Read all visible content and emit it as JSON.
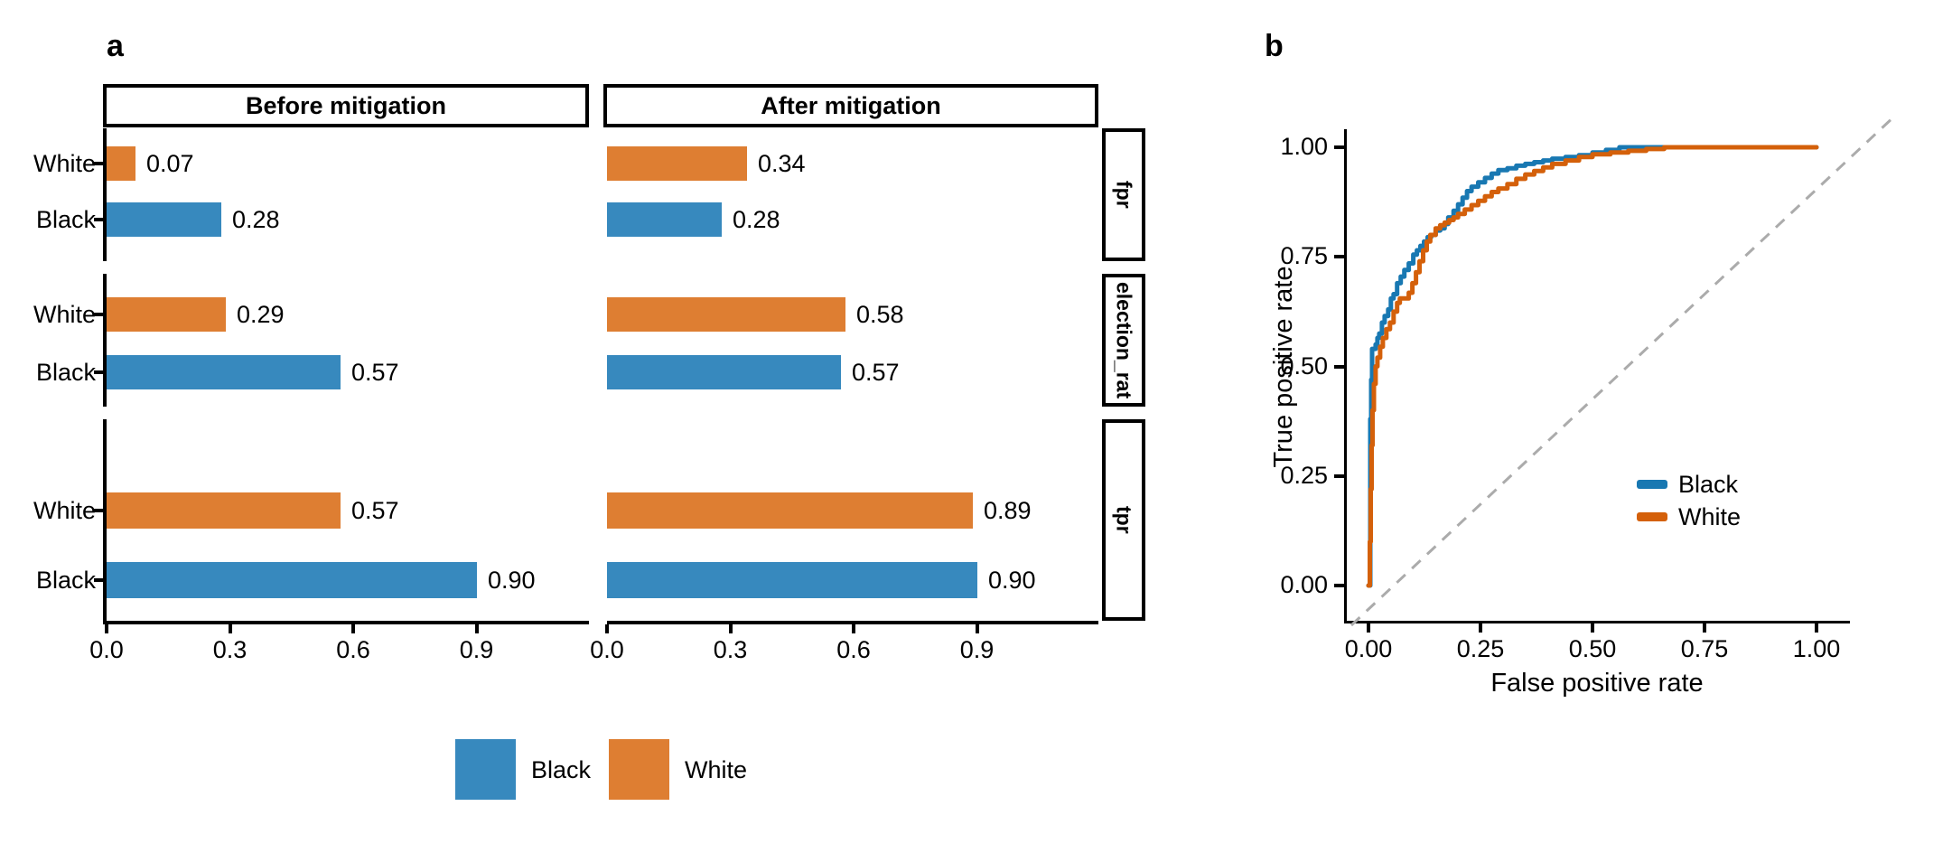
{
  "chart_data": [
    {
      "type": "bar",
      "panel_label": "a",
      "orientation": "horizontal",
      "facet_columns": [
        "Before mitigation",
        "After mitigation"
      ],
      "facet_rows": [
        "fpr",
        "election_rat",
        "tpr"
      ],
      "categories": [
        "White",
        "Black"
      ],
      "x_ticks": [
        "0.0",
        "0.3",
        "0.6",
        "0.9"
      ],
      "x_tick_values": [
        0,
        0.3,
        0.6,
        0.9
      ],
      "xlim": [
        0,
        1.17
      ],
      "grid": false,
      "bar_colors": {
        "Black": "#3789BE",
        "White": "#DE7E32"
      },
      "legend": [
        {
          "label": "Black",
          "color": "#3789BE"
        },
        {
          "label": "White",
          "color": "#DE7E32"
        }
      ],
      "facets": [
        {
          "strip": "fpr",
          "bars": [
            {
              "group": "White",
              "before": 0.07,
              "after": 0.34
            },
            {
              "group": "Black",
              "before": 0.28,
              "after": 0.28
            }
          ]
        },
        {
          "strip": "election_rat",
          "bars": [
            {
              "group": "White",
              "before": 0.29,
              "after": 0.58
            },
            {
              "group": "Black",
              "before": 0.57,
              "after": 0.57
            }
          ]
        },
        {
          "strip": "tpr",
          "bars": [
            {
              "group": "White",
              "before": 0.57,
              "after": 0.89
            },
            {
              "group": "Black",
              "before": 0.9,
              "after": 0.9
            }
          ]
        }
      ]
    },
    {
      "type": "line",
      "panel_label": "b",
      "xlabel": "False positive rate",
      "ylabel": "True positive rate",
      "x_ticks": [
        "0.00",
        "0.25",
        "0.50",
        "0.75",
        "1.00"
      ],
      "y_ticks": [
        "0.00",
        "0.25",
        "0.50",
        "0.75",
        "1.00"
      ],
      "x_tick_values": [
        0,
        0.25,
        0.5,
        0.75,
        1
      ],
      "y_tick_values": [
        0,
        0.25,
        0.5,
        0.75,
        1
      ],
      "xlim": [
        0,
        1.07
      ],
      "ylim": [
        0,
        1.07
      ],
      "grid": false,
      "legend_position": "inside-right",
      "reference_line": {
        "style": "dashed",
        "color": "#ABABAB",
        "from": [
          0,
          0
        ],
        "to": [
          1,
          1
        ]
      },
      "legend": [
        {
          "label": "Black",
          "color": "#1878B2"
        },
        {
          "label": "White",
          "color": "#D4600A"
        }
      ],
      "series": [
        {
          "name": "Black",
          "color": "#1878B2",
          "step": true,
          "points": [
            [
              0,
              0
            ],
            [
              0.004,
              0.38
            ],
            [
              0.006,
              0.47
            ],
            [
              0.008,
              0.54
            ],
            [
              0.016,
              0.55
            ],
            [
              0.02,
              0.565
            ],
            [
              0.024,
              0.575
            ],
            [
              0.03,
              0.6
            ],
            [
              0.036,
              0.615
            ],
            [
              0.044,
              0.63
            ],
            [
              0.05,
              0.655
            ],
            [
              0.056,
              0.665
            ],
            [
              0.064,
              0.69
            ],
            [
              0.072,
              0.705
            ],
            [
              0.08,
              0.72
            ],
            [
              0.09,
              0.735
            ],
            [
              0.1,
              0.755
            ],
            [
              0.108,
              0.765
            ],
            [
              0.116,
              0.775
            ],
            [
              0.124,
              0.785
            ],
            [
              0.132,
              0.795
            ],
            [
              0.14,
              0.8
            ],
            [
              0.15,
              0.81
            ],
            [
              0.16,
              0.815
            ],
            [
              0.17,
              0.825
            ],
            [
              0.178,
              0.84
            ],
            [
              0.19,
              0.855
            ],
            [
              0.2,
              0.87
            ],
            [
              0.21,
              0.885
            ],
            [
              0.22,
              0.9
            ],
            [
              0.23,
              0.91
            ],
            [
              0.245,
              0.92
            ],
            [
              0.26,
              0.93
            ],
            [
              0.275,
              0.94
            ],
            [
              0.29,
              0.948
            ],
            [
              0.31,
              0.952
            ],
            [
              0.33,
              0.958
            ],
            [
              0.35,
              0.962
            ],
            [
              0.37,
              0.966
            ],
            [
              0.39,
              0.97
            ],
            [
              0.41,
              0.974
            ],
            [
              0.44,
              0.978
            ],
            [
              0.47,
              0.982
            ],
            [
              0.5,
              0.988
            ],
            [
              0.53,
              0.994
            ],
            [
              0.56,
              1.0
            ],
            [
              1.0,
              1.0
            ]
          ]
        },
        {
          "name": "White",
          "color": "#D4600A",
          "step": true,
          "points": [
            [
              0,
              0
            ],
            [
              0.003,
              0.1
            ],
            [
              0.005,
              0.22
            ],
            [
              0.007,
              0.32
            ],
            [
              0.009,
              0.4
            ],
            [
              0.012,
              0.46
            ],
            [
              0.016,
              0.5
            ],
            [
              0.02,
              0.52
            ],
            [
              0.026,
              0.545
            ],
            [
              0.032,
              0.565
            ],
            [
              0.04,
              0.585
            ],
            [
              0.048,
              0.6
            ],
            [
              0.056,
              0.625
            ],
            [
              0.064,
              0.645
            ],
            [
              0.07,
              0.655
            ],
            [
              0.082,
              0.655
            ],
            [
              0.09,
              0.668
            ],
            [
              0.098,
              0.69
            ],
            [
              0.106,
              0.715
            ],
            [
              0.114,
              0.74
            ],
            [
              0.122,
              0.765
            ],
            [
              0.13,
              0.785
            ],
            [
              0.138,
              0.8
            ],
            [
              0.15,
              0.815
            ],
            [
              0.16,
              0.822
            ],
            [
              0.17,
              0.828
            ],
            [
              0.18,
              0.834
            ],
            [
              0.19,
              0.84
            ],
            [
              0.2,
              0.848
            ],
            [
              0.215,
              0.858
            ],
            [
              0.23,
              0.868
            ],
            [
              0.245,
              0.878
            ],
            [
              0.26,
              0.888
            ],
            [
              0.275,
              0.898
            ],
            [
              0.29,
              0.906
            ],
            [
              0.31,
              0.916
            ],
            [
              0.33,
              0.928
            ],
            [
              0.35,
              0.938
            ],
            [
              0.37,
              0.946
            ],
            [
              0.39,
              0.954
            ],
            [
              0.41,
              0.962
            ],
            [
              0.44,
              0.97
            ],
            [
              0.47,
              0.978
            ],
            [
              0.5,
              0.984
            ],
            [
              0.54,
              0.988
            ],
            [
              0.58,
              0.992
            ],
            [
              0.62,
              0.996
            ],
            [
              0.66,
              1.0
            ],
            [
              1.0,
              1.0
            ]
          ]
        }
      ]
    }
  ]
}
